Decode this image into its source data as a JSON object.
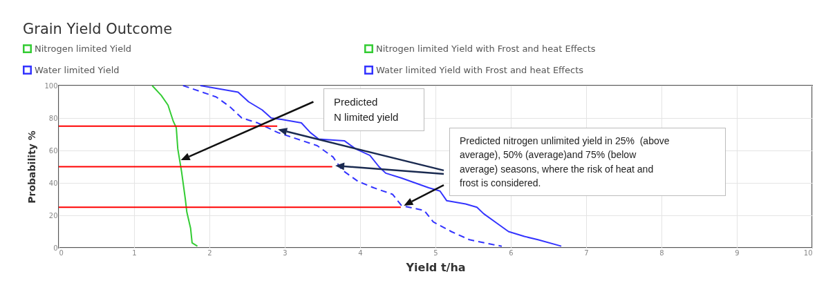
{
  "chart_data": {
    "type": "line",
    "title": "Grain Yield Outcome",
    "xlabel": "Yield t/ha",
    "ylabel": "Probability %",
    "xlim": [
      0,
      10
    ],
    "xticks": [
      0,
      1,
      2,
      3,
      4,
      5,
      6,
      7,
      8,
      9,
      10
    ],
    "ylim": [
      0,
      100
    ],
    "yticks": [
      0,
      20,
      40,
      60,
      80,
      100
    ],
    "grid": true,
    "legend": "top left",
    "line_style": "solid",
    "series": [
      {
        "name": "Nitrogen limited Yield",
        "color": "#33cc33",
        "x": [
          1.24,
          1.36,
          1.45,
          1.52,
          1.56,
          1.58,
          1.63,
          1.68,
          1.7,
          1.75,
          1.77,
          1.84
        ],
        "values": [
          100,
          94,
          88,
          78,
          74,
          61,
          47,
          30,
          22,
          12,
          3,
          1
        ]
      },
      {
        "name": "Nitrogen limited Yield with Frost and heat Effects",
        "color": "#33cc33"
      },
      {
        "name": "Water limited Yield",
        "color": "#3333ff",
        "x": [
          1.88,
          2.38,
          2.52,
          2.7,
          2.82,
          2.97,
          3.22,
          3.34,
          3.45,
          3.79,
          3.94,
          4.13,
          4.25,
          4.34,
          4.55,
          4.73,
          4.91,
          5.06,
          5.15,
          5.4,
          5.55,
          5.64,
          5.82,
          5.97,
          6.18,
          6.36,
          6.67
        ],
        "values": [
          100,
          96,
          90,
          85,
          80,
          79,
          77,
          71,
          67,
          66,
          61,
          57,
          50,
          46,
          43,
          40,
          37,
          35,
          29,
          27,
          25,
          21,
          15,
          10,
          7,
          5,
          1
        ]
      },
      {
        "name": "Water limited Yield with Frost and heat Effects",
        "color": "#3333ff",
        "line_style": "dashed",
        "x": [
          1.65,
          2.09,
          2.27,
          2.43,
          2.64,
          2.91,
          3.43,
          3.64,
          3.76,
          3.97,
          4.18,
          4.43,
          4.55,
          4.85,
          4.97,
          5.21,
          5.45,
          5.76,
          5.88
        ],
        "values": [
          100,
          93,
          87,
          80,
          77,
          71,
          63,
          56,
          48,
          41,
          37,
          33,
          26,
          23,
          16,
          10,
          5,
          2,
          1
        ]
      },
      {
        "color": "#ff0000",
        "x": [
          0,
          2.9
        ],
        "values": [
          75,
          75
        ]
      },
      {
        "color": "#ff0000",
        "x": [
          0,
          3.63
        ],
        "values": [
          50,
          50
        ]
      },
      {
        "color": "#ff0000",
        "x": [
          0,
          4.54
        ],
        "values": [
          25,
          25
        ]
      }
    ],
    "annotations": [
      "Predicted\nN limited yield",
      "Predicted nitrogen unlimited yield in 25%  (above\naverage), 50% (average)and 75% (below\naverage) seasons, where the risk of heat and\nfrost is considered."
    ]
  }
}
